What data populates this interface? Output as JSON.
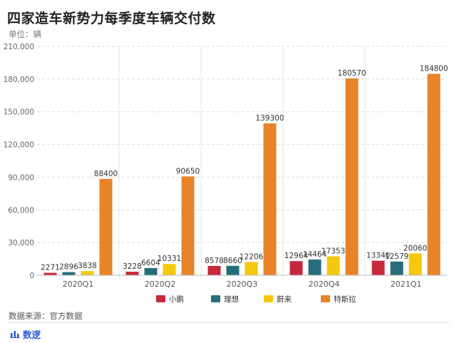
{
  "header": {
    "title": "四家造车新势力每季度车辆交付数",
    "unit": "单位：辆"
  },
  "footer": {
    "source": "数据来源：官方数据",
    "brand": "数逻",
    "brand_icon": "bar-chart-icon"
  },
  "colors": {
    "xiaopeng": "#c7283a",
    "lixiang": "#256d7a",
    "weilai": "#f5c80f",
    "tesla": "#e8832a"
  },
  "chart_data": {
    "type": "bar",
    "categories": [
      "2020Q1",
      "2020Q2",
      "2020Q3",
      "2020Q4",
      "2021Q1"
    ],
    "series": [
      {
        "name": "小鹏",
        "color": "#c7283a",
        "values": [
          2271,
          3228,
          8578,
          12964,
          13340
        ]
      },
      {
        "name": "理想",
        "color": "#256d7a",
        "values": [
          2896,
          6604,
          8660,
          14464,
          12579
        ]
      },
      {
        "name": "蔚来",
        "color": "#f5c80f",
        "values": [
          3838,
          10331,
          12206,
          17353,
          20060
        ]
      },
      {
        "name": "特斯拉",
        "color": "#e8832a",
        "values": [
          88400,
          90650,
          139300,
          180570,
          184800
        ]
      }
    ],
    "value_labels": [
      [
        "2271",
        "3228",
        "8578",
        "12964",
        "13340"
      ],
      [
        "2896",
        "6604",
        "8660",
        "14464",
        "12579"
      ],
      [
        "3838",
        "10331",
        "12206",
        "17353",
        "20060"
      ],
      [
        "88400",
        "90650",
        "139300",
        "180570",
        "184800"
      ]
    ],
    "yticks": [
      0,
      30000,
      60000,
      90000,
      120000,
      150000,
      180000,
      210000
    ],
    "ytick_labels": [
      "0",
      "30,000",
      "60,000",
      "90,000",
      "120,000",
      "150,000",
      "180,000",
      "210,000"
    ],
    "ylim": [
      0,
      210000
    ],
    "grid": true,
    "legend_position": "bottom"
  }
}
